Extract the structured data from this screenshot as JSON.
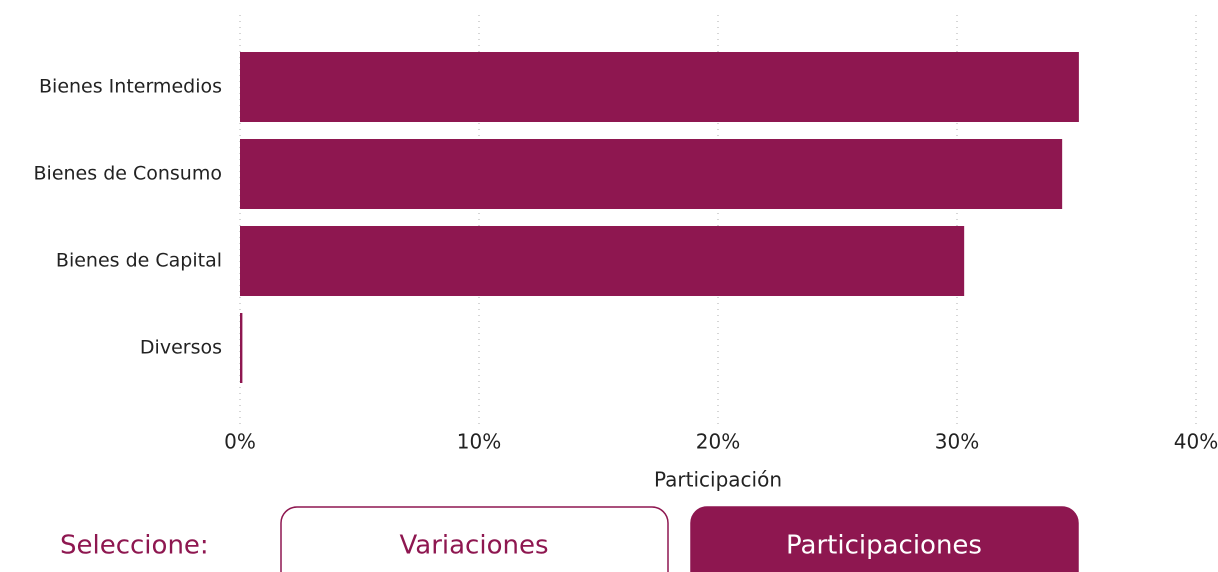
{
  "chart_data": {
    "type": "barh",
    "categories": [
      "Bienes Intermedios",
      "Bienes de Consumo",
      "Bienes de Capital",
      "Diversos"
    ],
    "values": [
      35.1,
      34.4,
      30.3,
      0.1
    ],
    "color": "#8e1750",
    "xlim": [
      0,
      40
    ],
    "xticks": [
      {
        "value": 0,
        "label": "0%"
      },
      {
        "value": 10,
        "label": "10%"
      },
      {
        "value": 20,
        "label": "20%"
      },
      {
        "value": 30,
        "label": "30%"
      },
      {
        "value": 40,
        "label": "40%"
      }
    ],
    "xlabel": "Participación",
    "grid": true
  },
  "controls": {
    "prompt": "Seleccione:",
    "options": [
      "Variaciones",
      "Participaciones"
    ],
    "selected": 1
  }
}
